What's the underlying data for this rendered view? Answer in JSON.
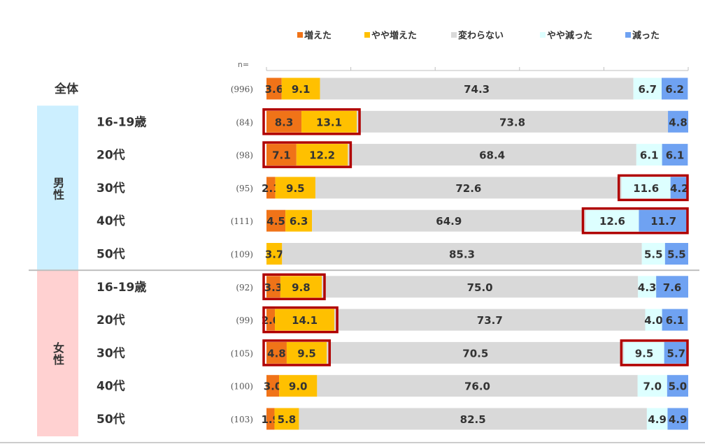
{
  "colors": {
    "increased": "#F07318",
    "slightly_increased": "#FFC000",
    "unchanged": "#D9D9D9",
    "slightly_decreased": "#DDFFFF",
    "decreased": "#6FA2F2",
    "highlight": "#B00000",
    "male_band": "#CCEFFF",
    "female_band": "#FFD1D1",
    "text": "#333333"
  },
  "chart_data": {
    "type": "bar",
    "orientation": "horizontal",
    "stacked": true,
    "normalized": true,
    "xlim": [
      0,
      100
    ],
    "n_label": "n=",
    "series": [
      {
        "key": "increased",
        "name": "増えた",
        "values": [
          3.6,
          8.3,
          7.1,
          2.1,
          4.5,
          0.0,
          3.3,
          2.0,
          4.8,
          3.0,
          1.9
        ]
      },
      {
        "key": "slightly_increased",
        "name": "やや増えた",
        "values": [
          9.1,
          13.1,
          12.2,
          9.5,
          6.3,
          3.7,
          9.8,
          14.1,
          9.5,
          9.0,
          5.8
        ]
      },
      {
        "key": "unchanged",
        "name": "変わらない",
        "values": [
          74.3,
          73.8,
          68.4,
          72.6,
          64.9,
          85.3,
          75.0,
          73.7,
          70.5,
          76.0,
          82.5
        ]
      },
      {
        "key": "slightly_decreased",
        "name": "やや減った",
        "values": [
          6.7,
          0.0,
          6.1,
          11.6,
          12.6,
          5.5,
          4.3,
          4.0,
          9.5,
          7.0,
          4.9
        ]
      },
      {
        "key": "decreased",
        "name": "減った",
        "values": [
          6.2,
          4.8,
          6.1,
          4.2,
          11.7,
          5.5,
          7.6,
          6.1,
          5.7,
          5.0,
          4.9
        ]
      }
    ],
    "groups": [
      {
        "key": "male",
        "label": "男性",
        "rows": [
          1,
          5
        ]
      },
      {
        "key": "female",
        "label": "女性",
        "rows": [
          6,
          10
        ]
      }
    ],
    "rows": [
      {
        "label": "全体",
        "n": "(996)",
        "top_level": true
      },
      {
        "label": "16-19歳",
        "n": "(84)"
      },
      {
        "label": "20代",
        "n": "(98)"
      },
      {
        "label": "30代",
        "n": "(95)"
      },
      {
        "label": "40代",
        "n": "(111)"
      },
      {
        "label": "50代",
        "n": "(109)"
      },
      {
        "label": "16-19歳",
        "n": "(92)"
      },
      {
        "label": "20代",
        "n": "(99)"
      },
      {
        "label": "30代",
        "n": "(105)"
      },
      {
        "label": "40代",
        "n": "(100)"
      },
      {
        "label": "50代",
        "n": "(103)"
      }
    ],
    "highlights": [
      {
        "row": 1,
        "segments": [
          "increased",
          "slightly_increased"
        ]
      },
      {
        "row": 2,
        "segments": [
          "increased",
          "slightly_increased"
        ]
      },
      {
        "row": 3,
        "segments": [
          "slightly_decreased",
          "decreased"
        ]
      },
      {
        "row": 4,
        "segments": [
          "slightly_decreased",
          "decreased"
        ]
      },
      {
        "row": 6,
        "segments": [
          "increased",
          "slightly_increased"
        ]
      },
      {
        "row": 7,
        "segments": [
          "increased",
          "slightly_increased"
        ]
      },
      {
        "row": 8,
        "segments": [
          "increased",
          "slightly_increased"
        ]
      },
      {
        "row": 8,
        "segments": [
          "slightly_decreased",
          "decreased"
        ]
      }
    ]
  }
}
